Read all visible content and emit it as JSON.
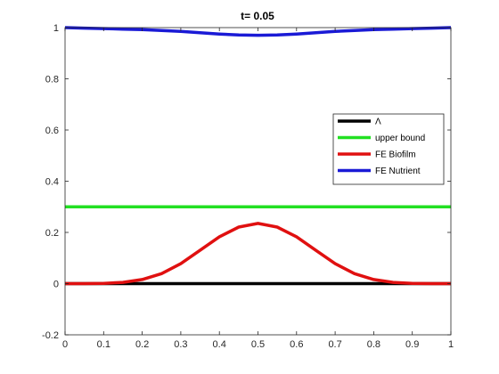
{
  "chart_data": {
    "type": "line",
    "title": "t=  0.05",
    "xlabel": "",
    "ylabel": "",
    "xlim": [
      0,
      1
    ],
    "ylim": [
      -0.2,
      1
    ],
    "x_ticks": [
      0,
      0.1,
      0.2,
      0.3,
      0.4,
      0.5,
      0.6,
      0.7,
      0.8,
      0.9,
      1
    ],
    "x_tick_labels": [
      "0",
      "0.1",
      "0.2",
      "0.3",
      "0.4",
      "0.5",
      "0.6",
      "0.7",
      "0.8",
      "0.9",
      "1"
    ],
    "y_ticks": [
      -0.2,
      0,
      0.2,
      0.4,
      0.6,
      0.8,
      1
    ],
    "y_tick_labels": [
      "-0.2",
      "0",
      "0.2",
      "0.4",
      "0.6",
      "0.8",
      "1"
    ],
    "grid": false,
    "legend_position": "right",
    "series": [
      {
        "name": "Λ",
        "color": "#000000",
        "x": [
          0,
          0.1,
          0.2,
          0.3,
          0.4,
          0.5,
          0.6,
          0.7,
          0.8,
          0.9,
          1
        ],
        "y": [
          0,
          0,
          0,
          0,
          0,
          0,
          0,
          0,
          0,
          0,
          0
        ]
      },
      {
        "name": "upper bound",
        "color": "#22e022",
        "x": [
          0,
          0.1,
          0.2,
          0.3,
          0.4,
          0.5,
          0.6,
          0.7,
          0.8,
          0.9,
          1
        ],
        "y": [
          0.3,
          0.3,
          0.3,
          0.3,
          0.3,
          0.3,
          0.3,
          0.3,
          0.3,
          0.3,
          0.3
        ]
      },
      {
        "name": "FE Biofilm",
        "color": "#e01010",
        "x": [
          0,
          0.05,
          0.1,
          0.15,
          0.2,
          0.25,
          0.3,
          0.35,
          0.4,
          0.45,
          0.5,
          0.55,
          0.6,
          0.65,
          0.7,
          0.75,
          0.8,
          0.85,
          0.9,
          0.95,
          1
        ],
        "y": [
          0,
          0,
          0.001,
          0.005,
          0.016,
          0.039,
          0.078,
          0.13,
          0.183,
          0.221,
          0.235,
          0.221,
          0.183,
          0.13,
          0.078,
          0.039,
          0.016,
          0.005,
          0.001,
          0,
          0
        ]
      },
      {
        "name": "FE Nutrient",
        "color": "#1a1ad6",
        "x": [
          0,
          0.05,
          0.1,
          0.15,
          0.2,
          0.25,
          0.3,
          0.35,
          0.4,
          0.45,
          0.5,
          0.55,
          0.6,
          0.65,
          0.7,
          0.75,
          0.8,
          0.85,
          0.9,
          0.95,
          1
        ],
        "y": [
          1,
          0.998,
          0.996,
          0.994,
          0.992,
          0.989,
          0.985,
          0.98,
          0.975,
          0.971,
          0.97,
          0.971,
          0.975,
          0.98,
          0.985,
          0.989,
          0.992,
          0.994,
          0.996,
          0.998,
          1
        ]
      }
    ]
  }
}
